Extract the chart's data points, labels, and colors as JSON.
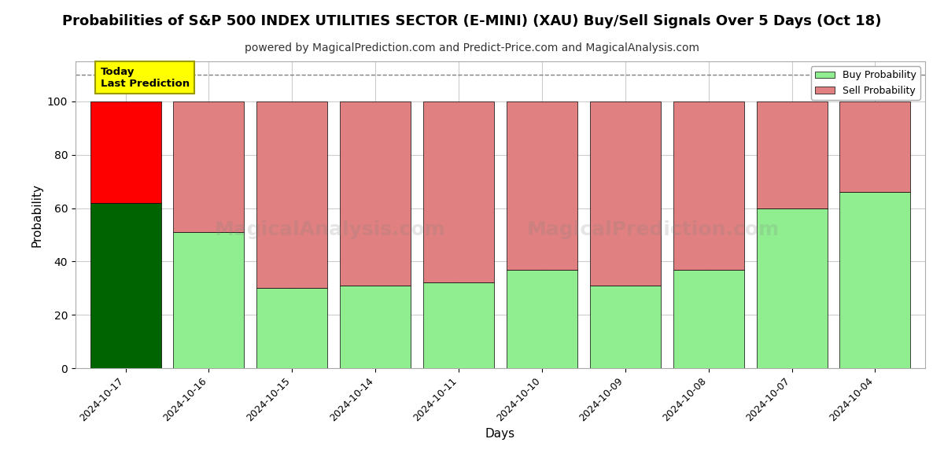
{
  "title": "Probabilities of S&P 500 INDEX UTILITIES SECTOR (E-MINI) (XAU) Buy/Sell Signals Over 5 Days (Oct 18)",
  "subtitle": "powered by MagicalPrediction.com and Predict-Price.com and MagicalAnalysis.com",
  "xlabel": "Days",
  "ylabel": "Probability",
  "categories": [
    "2024-10-17",
    "2024-10-16",
    "2024-10-15",
    "2024-10-14",
    "2024-10-11",
    "2024-10-10",
    "2024-10-09",
    "2024-10-08",
    "2024-10-07",
    "2024-10-04"
  ],
  "buy_values": [
    62,
    51,
    30,
    31,
    32,
    37,
    31,
    37,
    60,
    66
  ],
  "sell_values": [
    38,
    49,
    70,
    69,
    68,
    63,
    69,
    63,
    40,
    34
  ],
  "today_idx": 0,
  "today_buy_color": "#006400",
  "today_sell_color": "#ff0000",
  "other_buy_color": "#90EE90",
  "other_sell_color": "#E08080",
  "today_label_text": "Today\nLast Prediction",
  "today_label_bg": "#ffff00",
  "today_label_border": "#aaaaaa",
  "legend_buy_label": "Buy Probability",
  "legend_sell_label": "Sell Probability",
  "ylim": [
    0,
    115
  ],
  "dashed_line_y": 110,
  "watermark_left": "MagicalAnalysis.com",
  "watermark_right": "MagicalPrediction.com",
  "bg_color": "#ffffff",
  "grid_color": "#cccccc",
  "title_fontsize": 13,
  "subtitle_fontsize": 10,
  "label_fontsize": 11,
  "bar_width": 0.85
}
